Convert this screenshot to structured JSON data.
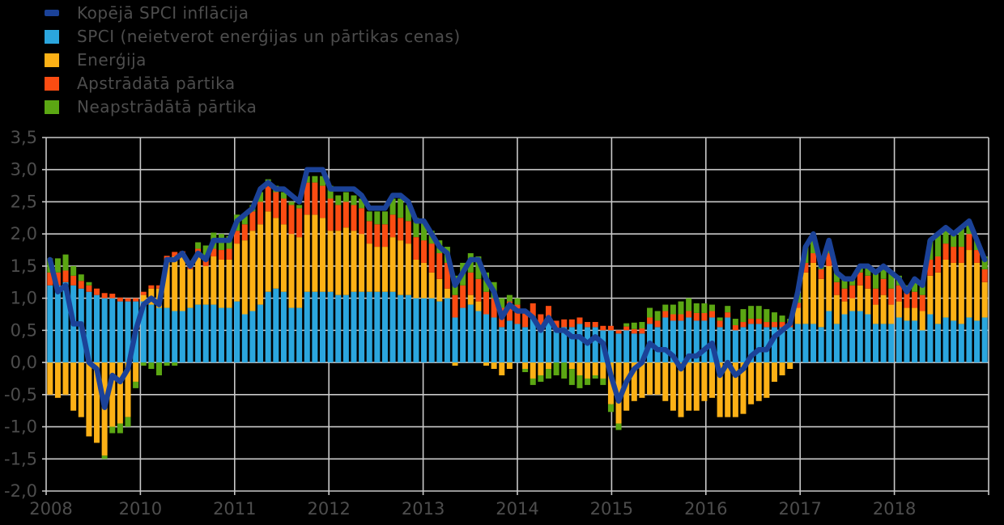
{
  "colors": {
    "background": "#000000",
    "grid": "#c9c9c9",
    "text": "#4d4d4d",
    "line": "#1b4298",
    "core": "#2ba6de",
    "energy": "#fcb116",
    "processed_food": "#fb4c12",
    "unprocessed_food": "#5ba713"
  },
  "legend": {
    "items": [
      {
        "label": "Kopējā SPCI inflācija",
        "color": "#1b4298",
        "type": "line"
      },
      {
        "label": "SPCI (neietverot enerģijas un pārtikas cenas)",
        "color": "#2ba6de",
        "type": "box"
      },
      {
        "label": "Enerģija",
        "color": "#fcb116",
        "type": "box"
      },
      {
        "label": "Apstrādātā pārtika",
        "color": "#fb4c12",
        "type": "box"
      },
      {
        "label": "Neapstrādātā pārtika",
        "color": "#5ba713",
        "type": "box"
      }
    ]
  },
  "chart_data": {
    "type": "bar",
    "subtype": "stacked-bar-with-line",
    "title": "",
    "x_start_month": "2008-12",
    "x_end_month": "2018-12",
    "months_per_tick": 12,
    "x_tick_labels": [
      "2008",
      "2010",
      "2011",
      "2012",
      "2013",
      "2014",
      "2015",
      "2016",
      "2017",
      "2018"
    ],
    "y_tick_labels": [
      "3,5",
      "3,0",
      "2,5",
      "2,0",
      "1,5",
      "1,0",
      "0,5",
      "0,0",
      "-0,5",
      "-1,0",
      "-1,5",
      "-2,0"
    ],
    "ylim": [
      -2.0,
      3.5
    ],
    "grid": true,
    "legend_position": "top-left",
    "series": [
      {
        "name": "SPCI (neietverot enerģijas un pārtikas cenas)",
        "color": "#2ba6de",
        "values": [
          1.2,
          1.2,
          1.25,
          1.2,
          1.15,
          1.1,
          1.05,
          1.0,
          1.0,
          0.95,
          0.95,
          0.95,
          0.95,
          0.9,
          0.85,
          0.85,
          0.8,
          0.8,
          0.85,
          0.9,
          0.9,
          0.9,
          0.85,
          0.85,
          0.95,
          0.75,
          0.8,
          0.9,
          1.1,
          1.15,
          1.1,
          0.85,
          0.85,
          1.1,
          1.1,
          1.1,
          1.1,
          1.05,
          1.05,
          1.1,
          1.1,
          1.1,
          1.1,
          1.1,
          1.1,
          1.05,
          1.05,
          1.0,
          1.0,
          1.0,
          0.95,
          1.0,
          0.7,
          0.85,
          0.9,
          0.8,
          0.75,
          0.7,
          0.55,
          0.65,
          0.6,
          0.55,
          0.7,
          0.55,
          0.7,
          0.5,
          0.55,
          0.55,
          0.6,
          0.55,
          0.55,
          0.5,
          0.5,
          0.45,
          0.5,
          0.45,
          0.45,
          0.6,
          0.55,
          0.7,
          0.65,
          0.65,
          0.7,
          0.65,
          0.65,
          0.7,
          0.55,
          0.7,
          0.5,
          0.55,
          0.6,
          0.6,
          0.55,
          0.55,
          0.55,
          0.55,
          0.6,
          0.6,
          0.6,
          0.55,
          0.8,
          0.6,
          0.75,
          0.8,
          0.8,
          0.75,
          0.6,
          0.6,
          0.6,
          0.7,
          0.65,
          0.65,
          0.5,
          0.75,
          0.6,
          0.7,
          0.65,
          0.6,
          0.7,
          0.65,
          0.7
        ]
      },
      {
        "name": "Enerģija",
        "color": "#fcb116",
        "values": [
          -0.5,
          -0.55,
          -0.5,
          -0.75,
          -0.85,
          -1.15,
          -1.25,
          -1.45,
          -1.0,
          -0.95,
          -0.85,
          -0.3,
          0.1,
          0.25,
          0.3,
          0.75,
          0.85,
          0.85,
          0.6,
          0.75,
          0.6,
          0.75,
          0.75,
          0.75,
          0.9,
          1.15,
          1.25,
          1.25,
          1.25,
          1.1,
          1.05,
          1.15,
          1.1,
          1.2,
          1.2,
          1.15,
          0.95,
          1.0,
          1.05,
          0.95,
          0.9,
          0.75,
          0.7,
          0.7,
          0.85,
          0.85,
          0.8,
          0.6,
          0.55,
          0.4,
          0.35,
          0.15,
          -0.05,
          0.0,
          0.15,
          0.15,
          -0.05,
          -0.1,
          -0.2,
          -0.1,
          0.0,
          -0.1,
          -0.25,
          -0.2,
          -0.1,
          0.0,
          0.0,
          -0.1,
          -0.2,
          -0.25,
          -0.2,
          -0.25,
          -0.65,
          -0.95,
          -0.75,
          -0.6,
          -0.55,
          -0.5,
          -0.5,
          -0.6,
          -0.75,
          -0.85,
          -0.75,
          -0.75,
          -0.6,
          -0.55,
          -0.85,
          -0.85,
          -0.85,
          -0.8,
          -0.65,
          -0.6,
          -0.55,
          -0.3,
          -0.2,
          -0.1,
          0.25,
          0.8,
          0.95,
          0.75,
          0.7,
          0.45,
          0.2,
          0.2,
          0.4,
          0.4,
          0.3,
          0.45,
          0.3,
          0.25,
          0.2,
          0.2,
          0.3,
          0.6,
          0.8,
          0.9,
          0.9,
          0.95,
          1.05,
          0.9,
          0.55
        ]
      },
      {
        "name": "Apstrādātā pārtika",
        "color": "#fb4c12",
        "values": [
          0.2,
          0.2,
          0.18,
          0.15,
          0.12,
          0.1,
          0.1,
          0.08,
          0.07,
          0.06,
          0.05,
          0.05,
          0.05,
          0.05,
          0.05,
          0.06,
          0.07,
          0.08,
          0.1,
          0.12,
          0.12,
          0.12,
          0.15,
          0.17,
          0.2,
          0.25,
          0.3,
          0.35,
          0.4,
          0.4,
          0.4,
          0.45,
          0.45,
          0.5,
          0.5,
          0.5,
          0.5,
          0.4,
          0.4,
          0.4,
          0.4,
          0.35,
          0.35,
          0.35,
          0.35,
          0.35,
          0.35,
          0.35,
          0.35,
          0.45,
          0.4,
          0.4,
          0.35,
          0.35,
          0.35,
          0.35,
          0.35,
          0.3,
          0.3,
          0.3,
          0.3,
          0.25,
          0.22,
          0.2,
          0.18,
          0.15,
          0.12,
          0.12,
          0.1,
          0.08,
          0.08,
          0.07,
          0.07,
          0.05,
          0.06,
          0.07,
          0.08,
          0.1,
          0.1,
          0.1,
          0.1,
          0.1,
          0.1,
          0.12,
          0.12,
          0.1,
          0.1,
          0.08,
          0.08,
          0.08,
          0.08,
          0.08,
          0.08,
          0.08,
          0.08,
          0.08,
          0.08,
          0.15,
          0.15,
          0.15,
          0.2,
          0.2,
          0.2,
          0.2,
          0.2,
          0.2,
          0.25,
          0.25,
          0.25,
          0.25,
          0.25,
          0.25,
          0.25,
          0.25,
          0.25,
          0.25,
          0.25,
          0.25,
          0.25,
          0.2,
          0.2
        ]
      },
      {
        "name": "Neapstrādātā pārtika",
        "color": "#5ba713",
        "values": [
          0.22,
          0.22,
          0.25,
          0.15,
          0.1,
          0.05,
          0.0,
          -0.05,
          -0.1,
          -0.15,
          -0.15,
          -0.1,
          -0.05,
          -0.1,
          -0.2,
          -0.05,
          -0.05,
          0.0,
          0.0,
          0.1,
          0.2,
          0.25,
          0.25,
          0.2,
          0.25,
          0.15,
          0.1,
          0.15,
          0.1,
          0.1,
          0.1,
          0.05,
          0.05,
          0.1,
          0.1,
          0.15,
          0.2,
          0.15,
          0.15,
          0.15,
          0.15,
          0.15,
          0.2,
          0.2,
          0.25,
          0.3,
          0.25,
          0.3,
          0.3,
          0.2,
          0.2,
          0.25,
          0.3,
          0.35,
          0.3,
          0.35,
          0.3,
          0.25,
          0.15,
          0.1,
          0.1,
          -0.05,
          -0.1,
          -0.1,
          -0.15,
          -0.2,
          -0.25,
          -0.25,
          -0.2,
          -0.1,
          -0.05,
          -0.1,
          -0.12,
          -0.1,
          0.05,
          0.1,
          0.1,
          0.15,
          0.15,
          0.1,
          0.15,
          0.2,
          0.2,
          0.15,
          0.15,
          0.1,
          0.05,
          0.1,
          0.1,
          0.2,
          0.2,
          0.2,
          0.2,
          0.15,
          0.1,
          0.05,
          0.15,
          0.25,
          0.3,
          0.1,
          0.15,
          0.15,
          0.15,
          0.1,
          0.1,
          0.15,
          0.25,
          0.2,
          0.25,
          0.15,
          0.1,
          0.2,
          0.2,
          0.3,
          0.35,
          0.25,
          0.2,
          0.3,
          0.2,
          0.15,
          0.2
        ]
      }
    ],
    "line": {
      "name": "Kopējā SPCI inflācija",
      "color": "#1b4298",
      "values": [
        1.6,
        1.1,
        1.2,
        0.6,
        0.6,
        0.0,
        -0.1,
        -0.7,
        -0.2,
        -0.3,
        -0.1,
        0.5,
        0.9,
        1.0,
        0.9,
        1.6,
        1.6,
        1.7,
        1.5,
        1.7,
        1.6,
        1.9,
        1.9,
        1.9,
        2.2,
        2.3,
        2.4,
        2.7,
        2.8,
        2.7,
        2.7,
        2.6,
        2.5,
        3.0,
        3.0,
        3.0,
        2.7,
        2.7,
        2.7,
        2.7,
        2.6,
        2.4,
        2.4,
        2.4,
        2.6,
        2.6,
        2.5,
        2.2,
        2.2,
        2.0,
        1.8,
        1.7,
        1.2,
        1.4,
        1.6,
        1.6,
        1.3,
        1.1,
        0.7,
        0.9,
        0.8,
        0.8,
        0.7,
        0.5,
        0.7,
        0.5,
        0.5,
        0.4,
        0.4,
        0.3,
        0.4,
        0.3,
        -0.2,
        -0.6,
        -0.3,
        -0.1,
        0.0,
        0.3,
        0.2,
        0.2,
        0.1,
        -0.1,
        0.1,
        0.1,
        0.2,
        0.3,
        -0.2,
        0.0,
        -0.2,
        -0.1,
        0.1,
        0.2,
        0.2,
        0.4,
        0.5,
        0.6,
        1.1,
        1.8,
        2.0,
        1.5,
        1.9,
        1.4,
        1.3,
        1.3,
        1.5,
        1.5,
        1.4,
        1.5,
        1.4,
        1.3,
        1.1,
        1.3,
        1.2,
        1.9,
        2.0,
        2.1,
        2.0,
        2.1,
        2.2,
        1.9,
        1.6
      ]
    }
  }
}
